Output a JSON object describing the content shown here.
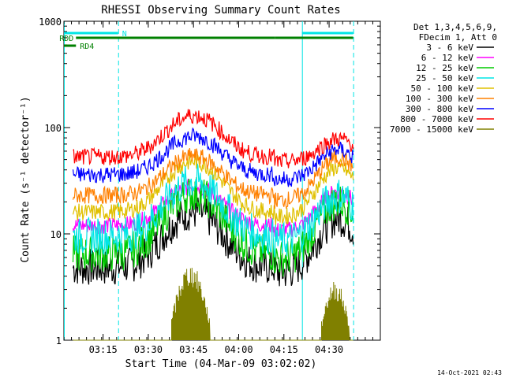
{
  "chart_data": {
    "type": "line",
    "title": "RHESSI Observing Summary Count Rates",
    "xlabel": "Start Time (04-Mar-09 03:02:02)",
    "ylabel": "Count Rate (s⁻¹ detector⁻¹)",
    "y_scale": "log",
    "ylim": [
      1,
      1000
    ],
    "xlim_min": [
      0,
      105
    ],
    "x_ticks": [
      {
        "t": 13,
        "label": "03:15"
      },
      {
        "t": 28,
        "label": "03:30"
      },
      {
        "t": 43,
        "label": "03:45"
      },
      {
        "t": 58,
        "label": "04:00"
      },
      {
        "t": 73,
        "label": "04:15"
      },
      {
        "t": 88,
        "label": "04:30"
      }
    ],
    "y_ticks": [
      {
        "v": 1,
        "label": "1"
      },
      {
        "v": 10,
        "label": "10"
      },
      {
        "v": 100,
        "label": "100"
      },
      {
        "v": 1000,
        "label": "1000"
      }
    ],
    "legend_header": [
      "Det 1,3,4,5,6,9,",
      "FDecim 1, Att 0"
    ],
    "legend_position": "right",
    "night_start_min": 0,
    "day_windows": [
      [
        0,
        18
      ],
      [
        79,
        96
      ]
    ],
    "flag_bars": [
      {
        "label": "N",
        "color": "#00e5e5",
        "segments": [
          [
            0,
            18
          ],
          [
            79,
            96
          ]
        ]
      },
      {
        "label": "RDD",
        "color": "#008000",
        "segments": [
          [
            4,
            70
          ],
          [
            70,
            96
          ]
        ]
      },
      {
        "label": "RD4",
        "color": "#008000",
        "segments": [
          [
            0,
            4
          ]
        ]
      }
    ],
    "orbit_gap": [
      70,
      79
    ],
    "series": [
      {
        "name": "3 - 6 keV",
        "color": "#000000",
        "base": 4.8,
        "peak1": 16,
        "peak2": 14
      },
      {
        "name": "6 - 12 keV",
        "color": "#ff00ff",
        "base": 12,
        "peak1": 28,
        "peak2": 25
      },
      {
        "name": "12 - 25 keV",
        "color": "#00cc00",
        "base": 6.5,
        "peak1": 24,
        "peak2": 20
      },
      {
        "name": "25 - 50 keV",
        "color": "#00e5e5",
        "base": 9.5,
        "peak1": 31,
        "peak2": 23
      },
      {
        "name": "50 - 100 keV",
        "color": "#e0c000",
        "base": 16,
        "peak1": 48,
        "peak2": 42
      },
      {
        "name": "100 - 300 keV",
        "color": "#ff8000",
        "base": 23,
        "peak1": 54,
        "peak2": 52
      },
      {
        "name": "300 - 800 keV",
        "color": "#0000ff",
        "base": 36,
        "peak1": 83,
        "peak2": 62
      },
      {
        "name": "800 - 7000 keV",
        "color": "#ff0000",
        "base": 53,
        "peak1": 130
      },
      {
        "name": "7000 - 15000 keV",
        "color": "#808000",
        "base": 1,
        "peak1": 4.5,
        "peak2": 3.2
      }
    ]
  },
  "footer": {
    "date": "14-Oct-2021 02:43"
  }
}
